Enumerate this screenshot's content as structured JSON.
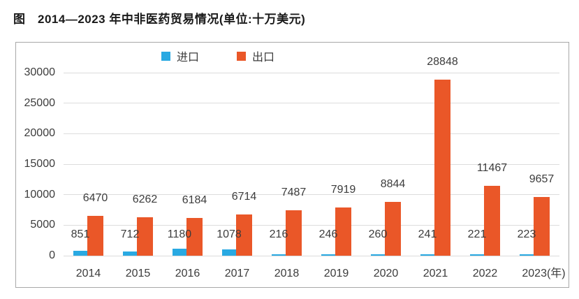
{
  "page": {
    "title": "图　2014—2023 年中非医药贸易情况(单位:十万美元)"
  },
  "chart_data": {
    "type": "bar",
    "title": "2014—2023 年中非医药贸易情况",
    "unit_label": "单位:十万美元",
    "categories": [
      "2014",
      "2015",
      "2016",
      "2017",
      "2018",
      "2019",
      "2020",
      "2021",
      "2022",
      "2023(年)"
    ],
    "series": [
      {
        "name": "进口",
        "color": "#29a9e2",
        "values": [
          851,
          712,
          1180,
          1078,
          216,
          246,
          260,
          241,
          221,
          223
        ]
      },
      {
        "name": "出口",
        "color": "#ea5728",
        "values": [
          6470,
          6262,
          6184,
          6714,
          7487,
          7919,
          8844,
          28848,
          11467,
          9657
        ]
      }
    ],
    "ylim": [
      0,
      30000
    ],
    "yticks": [
      0,
      5000,
      10000,
      15000,
      20000,
      25000,
      30000
    ],
    "grid": true,
    "legend_position": "top-center"
  },
  "colors": {
    "import_bar": "#29a9e2",
    "export_bar": "#ea5728",
    "gridline": "#dcdcdc",
    "box_border": "#a8a8a8",
    "text": "#3c3c3c"
  }
}
